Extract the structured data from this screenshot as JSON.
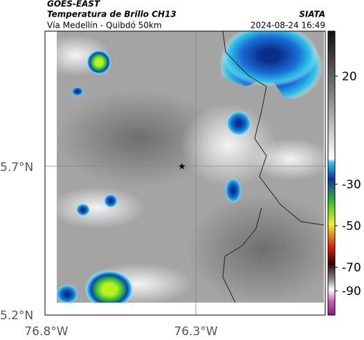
{
  "header": {
    "source": "GOES-EAST",
    "title": "Temperatura de Brillo CH13",
    "org": "SIATA",
    "subtitle": "Vía Medellín - Quibdó 50km",
    "timestamp": "2024-08-24 16:49"
  },
  "map": {
    "lat_labels": [
      "5.7°N",
      "5.2°N"
    ],
    "lon_labels": [
      "76.8°W",
      "76.3°W"
    ]
  },
  "colorbar": {
    "ticks": [
      20,
      -30,
      -50,
      -70,
      -90
    ]
  }
}
